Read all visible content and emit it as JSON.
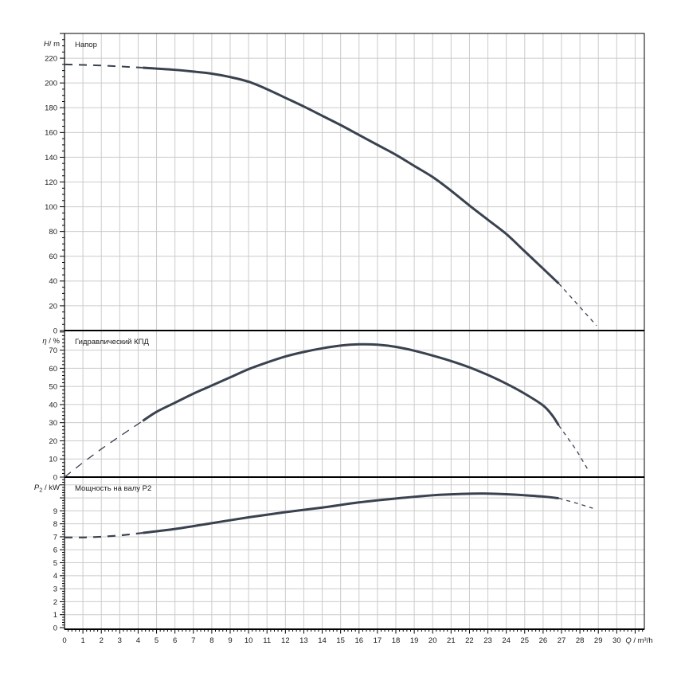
{
  "page": {
    "background": "#ffffff"
  },
  "chart_data": {
    "type": "line",
    "description_titles": [
      "Напор",
      "Гидравлический КПД",
      "Мощность на валу P2"
    ],
    "colors": {
      "curve": "#3a424f",
      "grid": "#cbcbcb",
      "axis": "#000000",
      "text": "#1a1a1a",
      "background": "#ffffff"
    },
    "x_axis": {
      "min": 0,
      "max": 31.5,
      "major_tick": 1,
      "minor_tick": 0.2,
      "tick_labels": [
        0,
        1,
        2,
        3,
        4,
        5,
        6,
        7,
        8,
        9,
        10,
        11,
        12,
        13,
        14,
        15,
        16,
        17,
        18,
        19,
        20,
        21,
        22,
        23,
        24,
        25,
        26,
        27,
        28,
        29,
        30
      ],
      "unit_parts": [
        {
          "t": "Q",
          "italic": true
        },
        {
          "t": " / m³/h"
        }
      ]
    },
    "panels": [
      {
        "id": "head",
        "title": "Напор",
        "unit_parts": [
          {
            "t": "H",
            "italic": true
          },
          {
            "t": "/ m"
          }
        ],
        "y_max": 240,
        "label_step": 20,
        "label_max": 220,
        "minor_step": 5,
        "grid_step": 20,
        "series": {
          "lead_dashed": [
            [
              0,
              215
            ],
            [
              1,
              214.6
            ],
            [
              2,
              214.1
            ],
            [
              3,
              213.4
            ],
            [
              4.25,
              212.3
            ]
          ],
          "solid": [
            [
              4.25,
              212.3
            ],
            [
              5,
              211.6
            ],
            [
              6,
              210.6
            ],
            [
              7,
              209.2
            ],
            [
              8,
              207.5
            ],
            [
              9,
              204.8
            ],
            [
              10,
              201
            ],
            [
              11,
              195
            ],
            [
              12,
              188
            ],
            [
              13,
              181
            ],
            [
              14,
              173.5
            ],
            [
              15,
              166
            ],
            [
              16,
              158
            ],
            [
              17,
              150
            ],
            [
              18,
              142
            ],
            [
              19,
              133
            ],
            [
              20,
              124
            ],
            [
              21,
              113
            ],
            [
              22,
              101
            ],
            [
              23,
              89.5
            ],
            [
              24,
              78
            ],
            [
              25,
              64
            ],
            [
              26,
              50
            ],
            [
              26.85,
              38
            ]
          ],
          "tail_dashed": [
            [
              26.85,
              38
            ],
            [
              28,
              19
            ],
            [
              28.9,
              4
            ]
          ]
        }
      },
      {
        "id": "efficiency",
        "title": "Гидравлический КПД",
        "unit_parts": [
          {
            "t": "η",
            "italic": true
          },
          {
            "t": " / %"
          }
        ],
        "y_max": 80.8,
        "label_step": 10,
        "label_max": 70,
        "minor_step": 2,
        "grid_step": 10,
        "series": {
          "lead_dashed": [
            [
              0,
              0
            ],
            [
              1,
              8
            ],
            [
              2,
              15.5
            ],
            [
              3,
              22.5
            ],
            [
              4.25,
              31
            ]
          ],
          "solid": [
            [
              4.25,
              31
            ],
            [
              5,
              36
            ],
            [
              6,
              41
            ],
            [
              7,
              46
            ],
            [
              8,
              50.5
            ],
            [
              9,
              55
            ],
            [
              10,
              59.5
            ],
            [
              11,
              63.2
            ],
            [
              12,
              66.5
            ],
            [
              13,
              69
            ],
            [
              14,
              71
            ],
            [
              15,
              72.5
            ],
            [
              16,
              73.2
            ],
            [
              17,
              73
            ],
            [
              18,
              71.8
            ],
            [
              19,
              69.7
            ],
            [
              20,
              67
            ],
            [
              21,
              64
            ],
            [
              22,
              60.5
            ],
            [
              23,
              56.3
            ],
            [
              24,
              51.5
            ],
            [
              25,
              46
            ],
            [
              26,
              39.5
            ],
            [
              26.5,
              34
            ],
            [
              26.85,
              28.5
            ]
          ],
          "tail_dashed": [
            [
              26.85,
              28.5
            ],
            [
              27.8,
              15
            ],
            [
              28.5,
              3
            ]
          ]
        }
      },
      {
        "id": "shaft-power",
        "title": "Мощность на валу P2",
        "unit_parts": [
          {
            "t": "P",
            "italic": true
          },
          {
            "t": "2",
            "sub": true
          },
          {
            "t": " / kW"
          }
        ],
        "y_max": 11.6,
        "label_step": 1,
        "label_max": 9,
        "minor_step": 0.2,
        "grid_step": 1,
        "series": {
          "lead_dashed": [
            [
              0,
              6.95
            ],
            [
              1,
              6.95
            ],
            [
              2,
              7.0
            ],
            [
              3,
              7.1
            ],
            [
              4.25,
              7.3
            ]
          ],
          "solid": [
            [
              4.25,
              7.3
            ],
            [
              6,
              7.6
            ],
            [
              8,
              8.05
            ],
            [
              10,
              8.5
            ],
            [
              12,
              8.9
            ],
            [
              14,
              9.25
            ],
            [
              16,
              9.65
            ],
            [
              18,
              9.95
            ],
            [
              20,
              10.2
            ],
            [
              21,
              10.27
            ],
            [
              22,
              10.32
            ],
            [
              23,
              10.33
            ],
            [
              24,
              10.28
            ],
            [
              25,
              10.2
            ],
            [
              26,
              10.1
            ],
            [
              26.85,
              9.97
            ]
          ],
          "tail_dashed": [
            [
              26.85,
              9.97
            ],
            [
              27.8,
              9.6
            ],
            [
              28.7,
              9.2
            ]
          ]
        }
      }
    ]
  }
}
